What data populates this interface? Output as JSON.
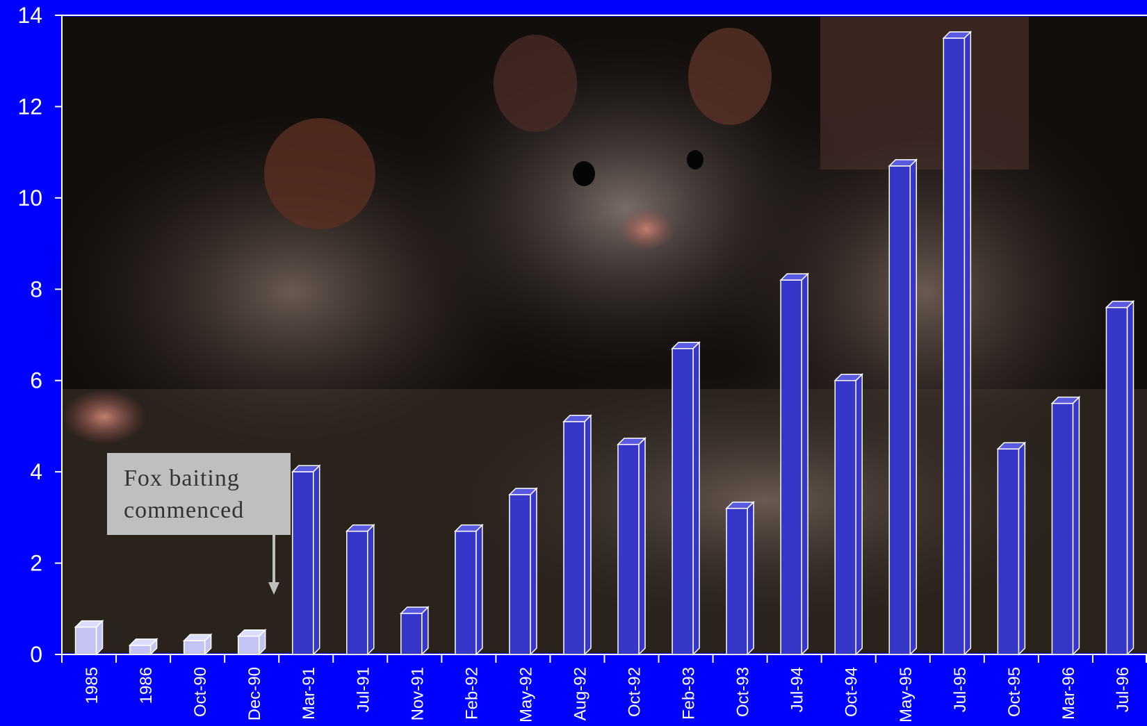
{
  "colors": {
    "background": "#0000ff",
    "bar_main": "#3636c8",
    "bar_early": "#c4c4f4",
    "axis": "#ffffff",
    "annotation_bg": "#bfbfbf"
  },
  "annotation": {
    "line1": "Fox baiting",
    "line2": "commenced",
    "points_to": "Mar-91"
  },
  "chart_data": {
    "type": "bar",
    "title": "",
    "xlabel": "",
    "ylabel": "",
    "ylim": [
      0,
      14
    ],
    "yticks": [
      0,
      2,
      4,
      6,
      8,
      10,
      12,
      14
    ],
    "grid": false,
    "legend": "none",
    "background_image": "photo of quolls",
    "categories": [
      "1985",
      "1986",
      "Oct-90",
      "Dec-90",
      "Mar-91",
      "Jul-91",
      "Nov-91",
      "Feb-92",
      "May-92",
      "Aug-92",
      "Oct-92",
      "Feb-93",
      "Oct-93",
      "Jul-94",
      "Oct-94",
      "May-95",
      "Jul-95",
      "Oct-95",
      "Mar-96",
      "Jul-96"
    ],
    "values": [
      0.6,
      0.2,
      0.3,
      0.4,
      4.0,
      2.7,
      0.9,
      2.7,
      3.5,
      5.1,
      4.6,
      6.7,
      3.2,
      8.2,
      6.0,
      10.7,
      13.5,
      4.5,
      5.5,
      7.6
    ],
    "early_period_categories": [
      "1985",
      "1986",
      "Oct-90",
      "Dec-90"
    ]
  }
}
